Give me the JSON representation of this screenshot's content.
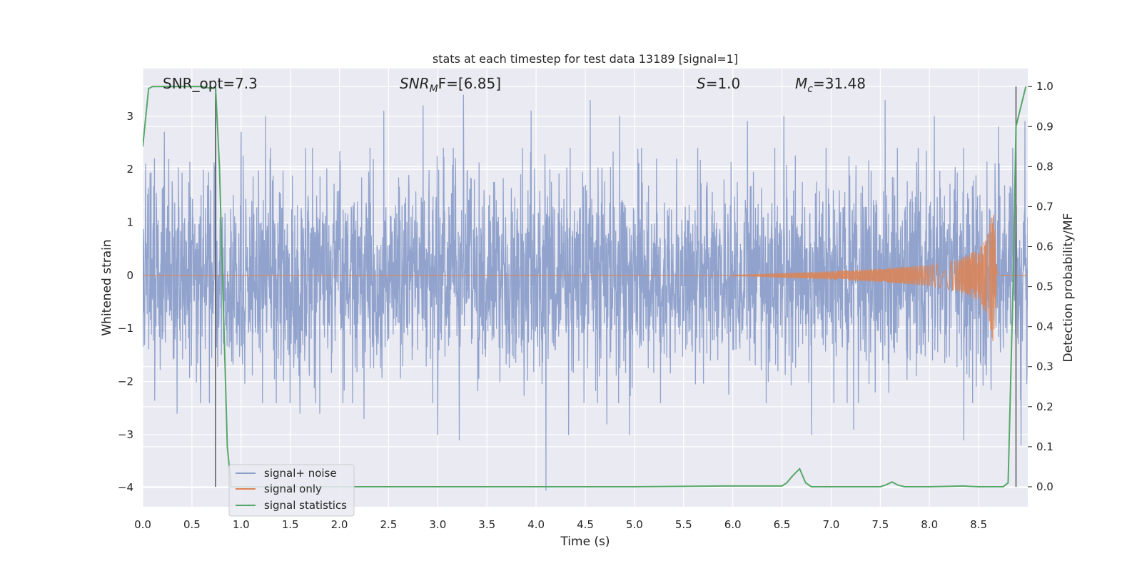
{
  "chart_data": {
    "type": "line",
    "title": "stats at each timestep for test data 13189 [signal=1]",
    "xlabel": "Time (s)",
    "ylabel_left": "Whitened strain",
    "ylabel_right": "Detection probability/MF",
    "xlim": [
      0.0,
      9.0
    ],
    "ylim_left": [
      -4.36,
      3.9
    ],
    "ylim_right": [
      -0.05,
      1.045
    ],
    "x_ticks": [
      "0.0",
      "0.5",
      "1.0",
      "1.5",
      "2.0",
      "2.5",
      "3.0",
      "3.5",
      "4.0",
      "4.5",
      "5.0",
      "5.5",
      "6.0",
      "6.5",
      "7.0",
      "7.5",
      "8.0",
      "8.5"
    ],
    "y_ticks_left": [
      "3",
      "2",
      "1",
      "0",
      "−1",
      "−2",
      "−3",
      "−4"
    ],
    "y_ticks_right": [
      "1.0",
      "0.9",
      "0.8",
      "0.7",
      "0.6",
      "0.5",
      "0.4",
      "0.3",
      "0.2",
      "0.1",
      "0.0"
    ],
    "grid": true,
    "legend_position": "lower-left",
    "annotations": {
      "snr_opt": "SNR_opt=7.3",
      "snr_mf_main": "SNR",
      "snr_mf_sub": "M",
      "snr_mf_rest": "F=[6.85]",
      "s_main": "S",
      "s_rest": "=1.0",
      "mc_main": "M",
      "mc_sub": "c",
      "mc_rest": "=31.48"
    },
    "vertical_lines_x": [
      0.74,
      8.88
    ],
    "series": [
      {
        "name": "signal+ noise",
        "color": "#8c9fca",
        "amplitude_std": 0.9,
        "outliers": [
          [
            0.03,
            2.1
          ],
          [
            0.12,
            2.2
          ],
          [
            0.22,
            2.7
          ],
          [
            0.35,
            -2.6
          ],
          [
            0.74,
            3.0
          ],
          [
            1.0,
            2.7
          ],
          [
            1.25,
            3.0
          ],
          [
            1.6,
            -2.6
          ],
          [
            1.8,
            -2.6
          ],
          [
            2.25,
            -2.7
          ],
          [
            2.45,
            3.1
          ],
          [
            2.85,
            3.2
          ],
          [
            3.0,
            -3.0
          ],
          [
            3.22,
            -3.1
          ],
          [
            3.26,
            3.4
          ],
          [
            3.95,
            3.1
          ],
          [
            4.1,
            -4.05
          ],
          [
            4.33,
            -3.0
          ],
          [
            4.55,
            3.3
          ],
          [
            4.72,
            -2.8
          ],
          [
            4.85,
            3.0
          ],
          [
            4.95,
            -3.0
          ],
          [
            6.15,
            2.9
          ],
          [
            6.52,
            3.0
          ],
          [
            6.8,
            -3.0
          ],
          [
            7.23,
            -2.9
          ],
          [
            7.55,
            3.3
          ],
          [
            8.05,
            3.0
          ],
          [
            8.35,
            -3.1
          ],
          [
            8.7,
            2.8
          ],
          [
            8.93,
            -3.2
          ],
          [
            8.97,
            2.9
          ]
        ]
      },
      {
        "name": "signal only",
        "color": "#dd8452",
        "f_start": 28,
        "f_end": 70,
        "envelope": [
          [
            6.0,
            0.01
          ],
          [
            7.0,
            0.08
          ],
          [
            7.5,
            0.13
          ],
          [
            8.0,
            0.2
          ],
          [
            8.3,
            0.3
          ],
          [
            8.5,
            0.5
          ],
          [
            8.6,
            0.8
          ],
          [
            8.65,
            1.3
          ],
          [
            8.69,
            0.1
          ],
          [
            8.72,
            0.0
          ]
        ]
      },
      {
        "name": "signal statistics",
        "color": "#55a868",
        "axis": "right",
        "x": [
          0.0,
          0.06,
          0.1,
          0.2,
          0.4,
          0.6,
          0.7,
          0.74,
          0.78,
          0.82,
          0.86,
          0.9,
          1.0,
          2.0,
          3.0,
          4.0,
          5.0,
          6.0,
          6.5,
          6.55,
          6.6,
          6.68,
          6.74,
          6.8,
          7.0,
          7.5,
          7.55,
          7.62,
          7.68,
          7.75,
          8.0,
          8.35,
          8.4,
          8.5,
          8.75,
          8.8,
          8.85,
          8.88,
          8.93,
          8.98
        ],
        "y": [
          0.85,
          0.995,
          1.0,
          1.0,
          1.0,
          1.0,
          0.995,
          1.0,
          0.8,
          0.45,
          0.1,
          0.0,
          0.0,
          0.0,
          0.0,
          0.0,
          0.0,
          0.002,
          0.002,
          0.01,
          0.025,
          0.045,
          0.01,
          0.0,
          0.0,
          0.0,
          0.004,
          0.012,
          0.004,
          0.0,
          0.0,
          0.002,
          0.001,
          0.0,
          0.0,
          0.01,
          0.5,
          0.9,
          0.95,
          1.0
        ]
      }
    ]
  }
}
